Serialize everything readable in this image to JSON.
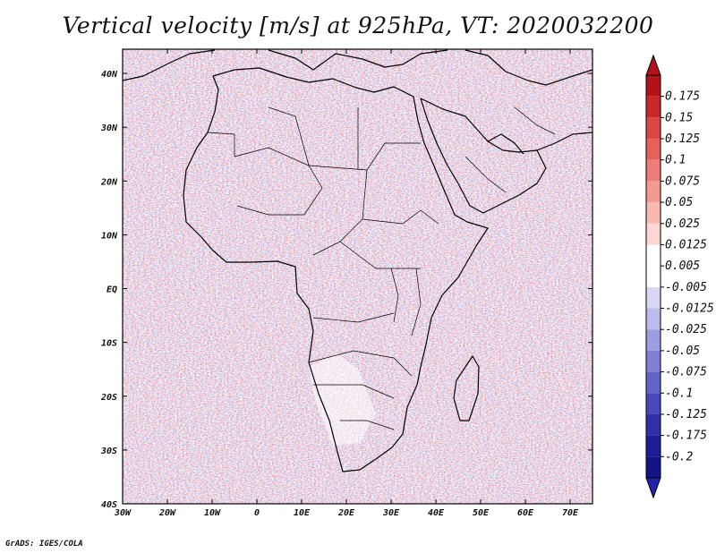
{
  "title": "Vertical velocity [m/s] at 925hPa, VT: 2020032200",
  "credit": "GrADS: IGES/COLA",
  "map": {
    "lat_labels": [
      "40N",
      "30N",
      "20N",
      "10N",
      "EQ",
      "10S",
      "20S",
      "30S",
      "40S"
    ],
    "lat_values": [
      40,
      30,
      20,
      10,
      0,
      -10,
      -20,
      -30,
      -40
    ],
    "lon_labels": [
      "30W",
      "20W",
      "10W",
      "0",
      "10E",
      "20E",
      "30E",
      "40E",
      "50E",
      "60E",
      "70E"
    ],
    "lon_values": [
      -30,
      -20,
      -10,
      0,
      10,
      20,
      30,
      40,
      50,
      60,
      70
    ],
    "lat_range": [
      -40,
      44.5
    ],
    "lon_range": [
      -30,
      75
    ],
    "field": "vertical velocity",
    "level": "925hPa"
  },
  "colorbar": {
    "labels": [
      "0.175",
      "0.15",
      "0.125",
      "0.1",
      "0.075",
      "0.05",
      "0.025",
      "0.0125",
      "0.005",
      "-0.005",
      "-0.0125",
      "-0.025",
      "-0.05",
      "-0.075",
      "-0.1",
      "-0.125",
      "-0.175",
      "-0.2"
    ],
    "colors": [
      "#b3121a",
      "#c8282c",
      "#dc4644",
      "#e8605b",
      "#ef7d77",
      "#f49a93",
      "#f8b9b3",
      "#fcd6d2",
      "#ffffff",
      "#ffffff",
      "#d8d8f4",
      "#bbbbec",
      "#9d9de2",
      "#7f7fd6",
      "#6262c8",
      "#4848ba",
      "#3030aa",
      "#1e1e98",
      "#131388"
    ],
    "top_arrow_color": "#b3121a",
    "bottom_arrow_color": "#2222aa"
  }
}
